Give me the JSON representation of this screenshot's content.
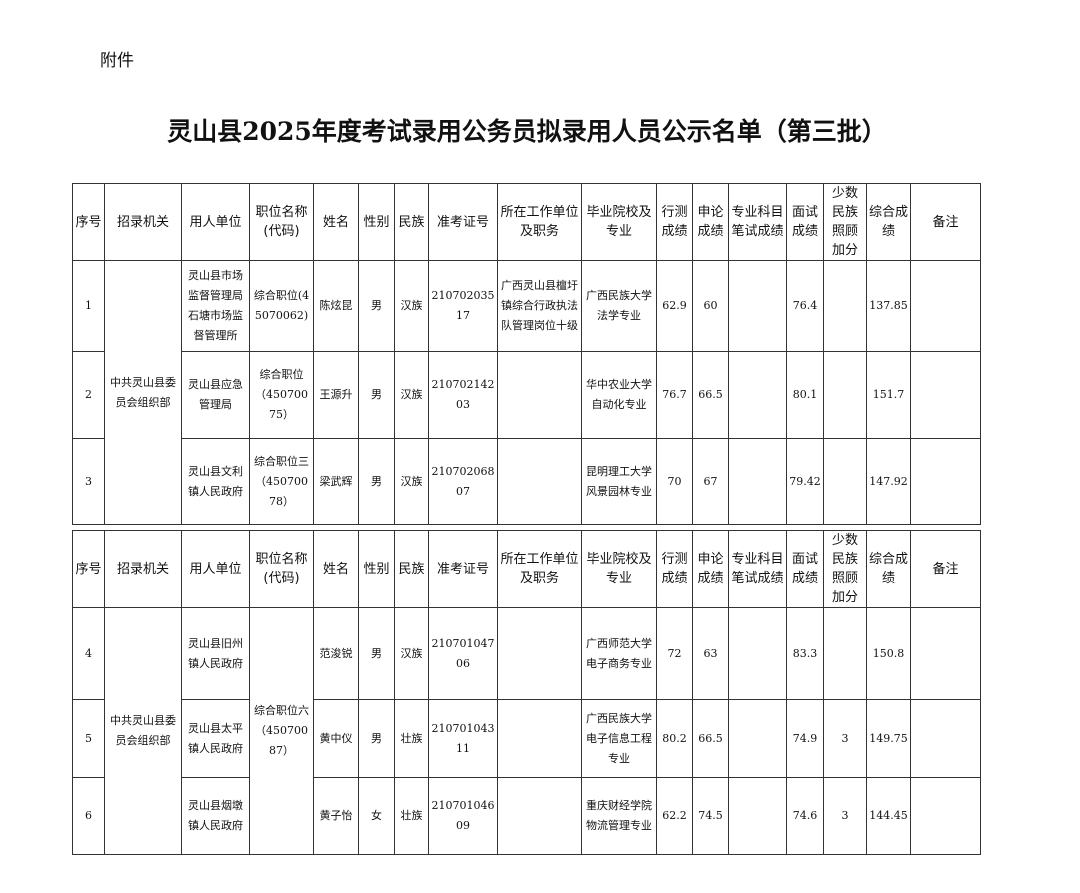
{
  "header": {
    "attachment": "附件",
    "title": "灵山县2025年度考试录用公务员拟录用人员公示名单（第三批）"
  },
  "columns": [
    "序号",
    "招录机关",
    "用人单位",
    "职位名称(代码)",
    "姓名",
    "性别",
    "民族",
    "准考证号",
    "所在工作单位及职务",
    "毕业院校及专业",
    "行测成绩",
    "申论成绩",
    "专业科目笔试成绩",
    "面试成绩",
    "少数民族照顾加分",
    "综合成绩",
    "备注"
  ],
  "tables": [
    {
      "agency": "中共灵山县委员会组织部",
      "rows": [
        {
          "no": 1,
          "unit": "灵山县市场监督管理局石塘市场监督管理所",
          "position": "综合职位(45070062)",
          "name": "陈炫昆",
          "gender": "男",
          "ethnicity": "汉族",
          "exam_id": "21070203517",
          "work": "广西灵山县檀圩镇综合行政执法队管理岗位十级",
          "school": "广西民族大学法学专业",
          "xingce": 62.9,
          "shenlun": 60,
          "interview": 76.4,
          "total": 137.85
        },
        {
          "no": 2,
          "unit": "灵山县应急管理局",
          "position": "综合职位（45070075）",
          "name": "王源升",
          "gender": "男",
          "ethnicity": "汉族",
          "exam_id": "21070214203",
          "school": "华中农业大学自动化专业",
          "xingce": 76.7,
          "shenlun": 66.5,
          "interview": 80.1,
          "total": 151.7
        },
        {
          "no": 3,
          "unit": "灵山县文利镇人民政府",
          "position": "综合职位三（45070078）",
          "name": "梁武辉",
          "gender": "男",
          "ethnicity": "汉族",
          "exam_id": "21070206807",
          "school": "昆明理工大学风景园林专业",
          "xingce": 70,
          "shenlun": 67,
          "interview": 79.42,
          "total": 147.92
        }
      ]
    },
    {
      "agency": "中共灵山县委员会组织部",
      "position": "综合职位六（45070087）",
      "rows": [
        {
          "no": 4,
          "unit": "灵山县旧州镇人民政府",
          "name": "范浚锐",
          "gender": "男",
          "ethnicity": "汉族",
          "exam_id": "21070104706",
          "school": "广西师范大学电子商务专业",
          "xingce": 72,
          "shenlun": 63,
          "interview": 83.3,
          "total": 150.8
        },
        {
          "no": 5,
          "unit": "灵山县太平镇人民政府",
          "name": "黄中仪",
          "gender": "男",
          "ethnicity": "壮族",
          "exam_id": "21070104311",
          "school": "广西民族大学电子信息工程专业",
          "xingce": 80.2,
          "shenlun": 66.5,
          "interview": 74.9,
          "bonus": 3,
          "total": 149.75
        },
        {
          "no": 6,
          "unit": "灵山县烟墩镇人民政府",
          "name": "黄子怡",
          "gender": "女",
          "ethnicity": "壮族",
          "exam_id": "21070104609",
          "school": "重庆财经学院物流管理专业",
          "xingce": 62.2,
          "shenlun": 74.5,
          "interview": 74.6,
          "bonus": 3,
          "total": 144.45
        }
      ]
    }
  ]
}
